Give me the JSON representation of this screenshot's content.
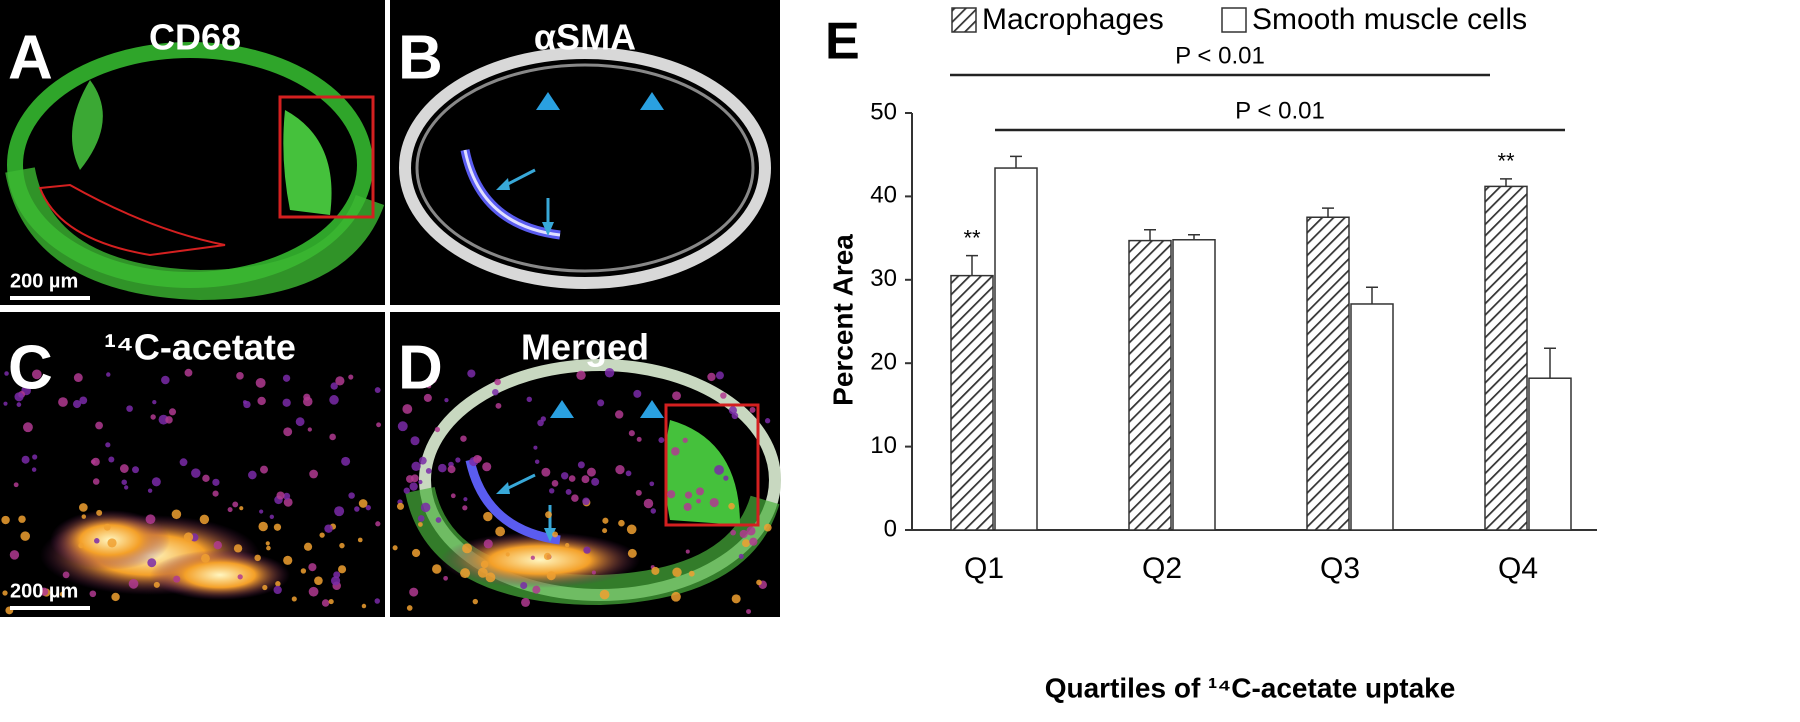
{
  "panels": [
    {
      "letter": "A",
      "title": "CD68",
      "scale_bar": "200 µm"
    },
    {
      "letter": "B",
      "title": "αSMA"
    },
    {
      "letter": "C",
      "title": "¹⁴C-acetate",
      "scale_bar": "200 µm"
    },
    {
      "letter": "D",
      "title": "Merged"
    }
  ],
  "chart_data": {
    "type": "bar",
    "panel_label": "E",
    "categories": [
      "Q1",
      "Q2",
      "Q3",
      "Q4"
    ],
    "series": [
      {
        "name": "Macrophages",
        "color": "#333333",
        "hatch": true,
        "values": [
          30.5,
          34.7,
          37.5,
          41.2
        ],
        "errors": [
          2.4,
          1.3,
          1.1,
          0.9
        ]
      },
      {
        "name": "Smooth muscle cells",
        "color": "#ffffff",
        "hatch": false,
        "values": [
          43.4,
          34.8,
          27.1,
          18.2
        ],
        "errors": [
          1.4,
          0.6,
          2.0,
          3.6
        ]
      }
    ],
    "ylim": [
      0,
      50
    ],
    "yticks": [
      0,
      10,
      20,
      30,
      40,
      50
    ],
    "y_label": "Percent  Area",
    "x_label": "Quartiles of ¹⁴C-acetate uptake",
    "significance": [
      {
        "text": "P < 0.01",
        "from": "Q1",
        "to": "Q4"
      },
      {
        "text": "P < 0.01",
        "from": "Q1",
        "to": "Q4"
      }
    ],
    "stars": [
      {
        "text": "**",
        "category": "Q1"
      },
      {
        "text": "**",
        "category": "Q4"
      }
    ]
  }
}
